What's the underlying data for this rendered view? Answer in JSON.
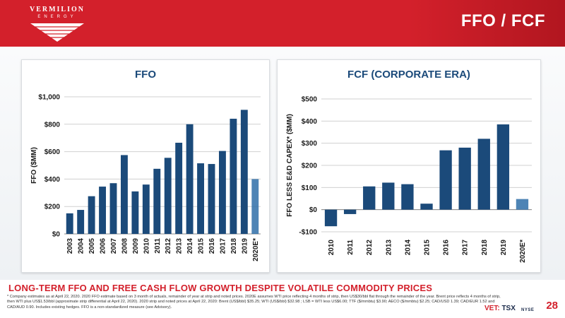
{
  "brand": {
    "name": "VERMILION",
    "subname": "ENERGY",
    "accent_color": "#d3202b",
    "bar_color": "#1b4a7a",
    "estimate_bar_color": "#2f6fa8"
  },
  "slide": {
    "title": "FFO / FCF",
    "tagline": "LONG-TERM FFO AND FREE CASH FLOW GROWTH DESPITE VOLATILE COMMODITY PRICES",
    "footnote": "* Company estimates as at April 22, 2020. 2020 FFO estimate based on 3 month of actuals, remainder of year at strip and noted prices. 2020E assumes WTI price reflecting 4 months of strip, then US$30/bbl flat through the remainder of the year. Brent price reflects 4 months of strip, then WTI plus US$1.53/bbl (approximate strip differential at April 22, 2020). 2020 strip and noted prices at April 22, 2020: Brent (US$/bbl) $35.25; WTI (US$/bbl) $32.98 ; LSB = WTI less US$6.00; TTF ($/mmbtu) $3.90; AECO ($/mmbtu) $2.25; CAD/USD 1.39; CAD/EUR 1.52 and CAD/AUD 0.90. Includes existing hedges. FFO is a non-standardized measure (see Advisory).",
    "exchange_prefix": "VET:",
    "exchange_tsx": "TSX",
    "exchange_nyse": "NYSE",
    "page_number": "28"
  },
  "chart_data": [
    {
      "type": "bar",
      "title": "FFO",
      "xlabel": "",
      "ylabel": "FFO ($MM)",
      "ylim": [
        0,
        1000
      ],
      "yticks": [
        0,
        200,
        400,
        600,
        800,
        1000
      ],
      "ytick_labels": [
        "$0",
        "$200",
        "$400",
        "$600",
        "$800",
        "$1,000"
      ],
      "grid": true,
      "categories": [
        "2003",
        "2004",
        "2005",
        "2006",
        "2007",
        "2008",
        "2009",
        "2010",
        "2011",
        "2012",
        "2013",
        "2014",
        "2015",
        "2016",
        "2017",
        "2018",
        "2019",
        "2020E*"
      ],
      "values": [
        150,
        175,
        275,
        345,
        370,
        575,
        310,
        360,
        475,
        555,
        665,
        800,
        515,
        510,
        605,
        840,
        905,
        400
      ],
      "estimate_index": 17
    },
    {
      "type": "bar",
      "title": "FCF (CORPORATE ERA)",
      "xlabel": "",
      "ylabel": "FFO LESS E&D CAPEX* ($MM)",
      "ylim": [
        -100,
        500
      ],
      "yticks": [
        -100,
        0,
        100,
        200,
        300,
        400,
        500
      ],
      "ytick_labels": [
        "-$100",
        "$0",
        "$100",
        "$200",
        "$300",
        "$400",
        "$500"
      ],
      "grid": true,
      "categories": [
        "2010",
        "2011",
        "2012",
        "2013",
        "2014",
        "2015",
        "2016",
        "2017",
        "2018",
        "2019",
        "2020E*"
      ],
      "values": [
        -75,
        -20,
        105,
        122,
        115,
        27,
        268,
        280,
        320,
        385,
        48
      ],
      "estimate_index": 10
    }
  ]
}
